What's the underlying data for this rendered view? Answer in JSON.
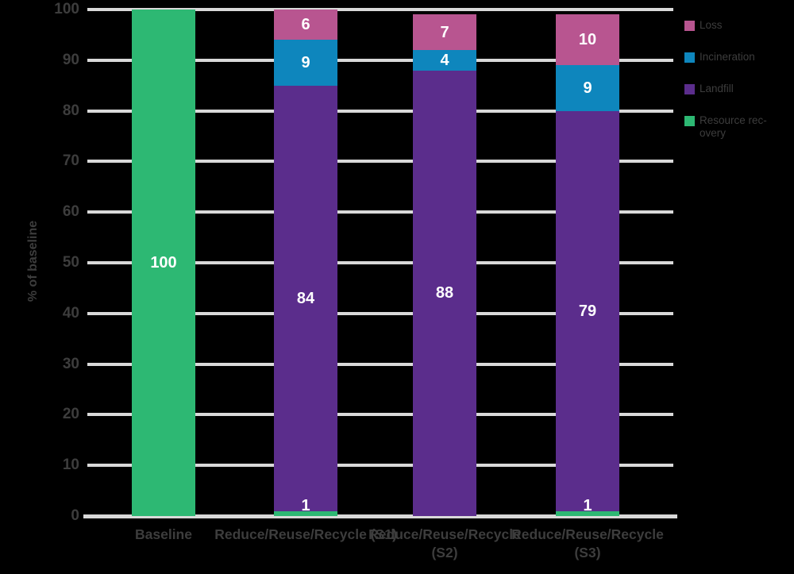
{
  "colors": {
    "background": "#000000",
    "axis_text": "#3d3d3d",
    "gridline": "#d9d9d9",
    "bar_value_label": "#ffffff",
    "series_green": "#2db873",
    "series_purple": "#5b2d8c",
    "series_blue": "#0e86bd",
    "series_pink": "#b85590"
  },
  "chart_data": {
    "type": "bar",
    "stacked": true,
    "orientation": "vertical",
    "title": "",
    "xlabel": "",
    "ylabel": "% of baseline",
    "ylim": [
      0,
      100
    ],
    "yticks": [
      100,
      90,
      80,
      70,
      60,
      50,
      40,
      30,
      20,
      10,
      0
    ],
    "grid": true,
    "legend_position": "top-right",
    "categories": [
      "Baseline",
      "Reduce/Reuse/Recycle (S1)",
      "Reduce/Reuse/Recycle (S2)",
      "Reduce/Reuse/Recycle (S3)"
    ],
    "category_label_lines": [
      [
        "Baseline"
      ],
      [
        "Reduce/Reuse/Recycle (S1)"
      ],
      [
        "Reduce/Reuse/Recycle",
        "(S2)"
      ],
      [
        "Reduce/Reuse/Recycle",
        "(S3)"
      ]
    ],
    "series": [
      {
        "name": "Resource recovery",
        "legend_lines": [
          "Resource rec-",
          "overy"
        ],
        "color": "#2db873",
        "values": [
          100,
          1,
          0,
          1
        ]
      },
      {
        "name": "Landfill",
        "legend_lines": [
          "Landfill"
        ],
        "color": "#5b2d8c",
        "values": [
          0,
          84,
          88,
          79
        ]
      },
      {
        "name": "Incineration",
        "legend_lines": [
          "Incineration"
        ],
        "color": "#0e86bd",
        "values": [
          0,
          9,
          4,
          9
        ]
      },
      {
        "name": "Loss",
        "legend_lines": [
          "Loss"
        ],
        "color": "#b85590",
        "values": [
          0,
          6,
          7,
          10
        ]
      }
    ]
  }
}
